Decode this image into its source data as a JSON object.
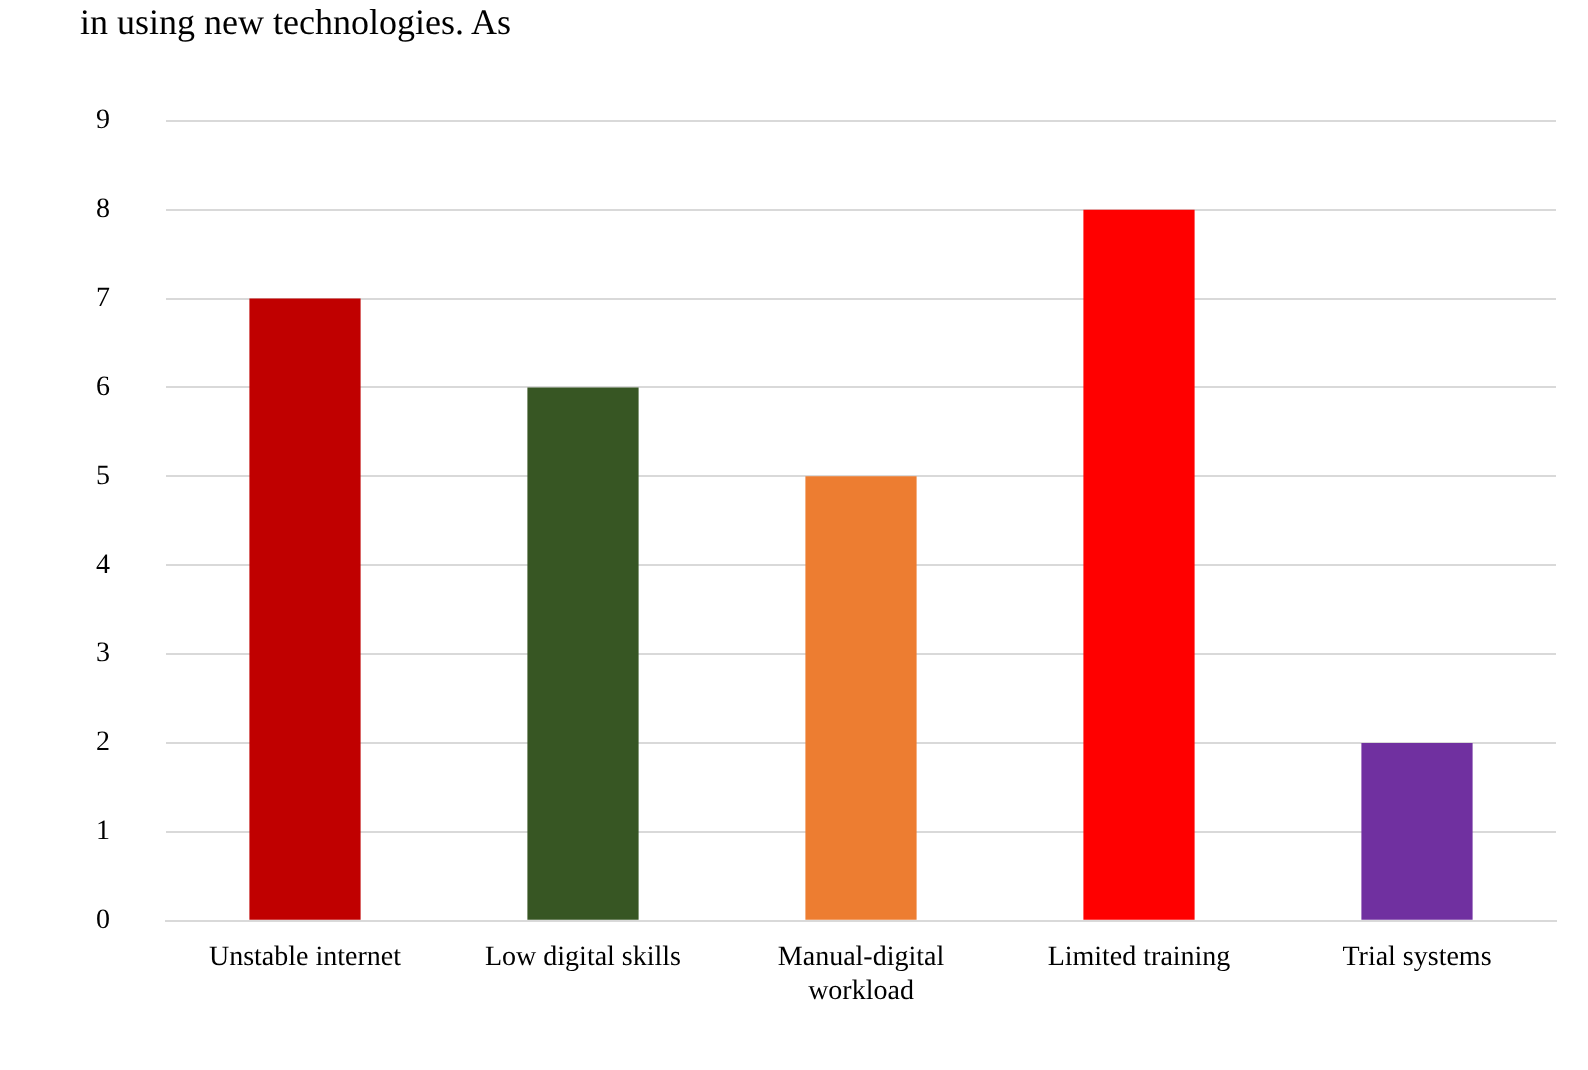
{
  "chart_data": {
    "type": "bar",
    "annotations": [
      "in using new technologies. As"
    ],
    "categories": [
      "Unstable internet",
      "Low digital skills",
      "Manual-digital workload",
      "Limited training",
      "Trial systems"
    ],
    "values": [
      7,
      6,
      5,
      8,
      2
    ],
    "colors": [
      "#c00000",
      "#375623",
      "#ed7d31",
      "#ff0000",
      "#7030a0"
    ],
    "ylim": [
      0,
      9
    ],
    "yticks": [
      0,
      1,
      2,
      3,
      4,
      5,
      6,
      7,
      8,
      9
    ],
    "grid": "y",
    "legend": false
  }
}
